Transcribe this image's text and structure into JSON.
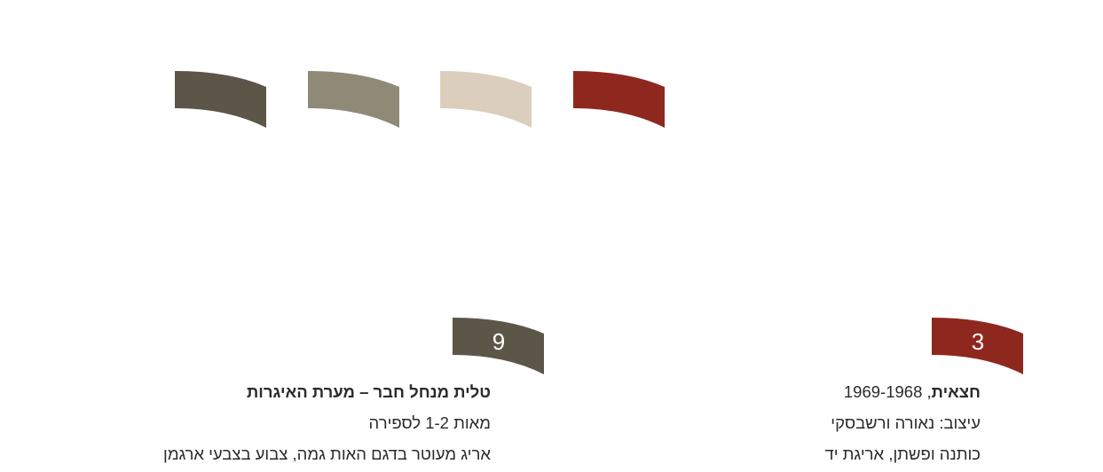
{
  "swatches": [
    {
      "name": "dark-gray",
      "color": "#5c5649"
    },
    {
      "name": "olive-gray",
      "color": "#8e8a76"
    },
    {
      "name": "beige",
      "color": "#dccebd"
    },
    {
      "name": "red",
      "color": "#8e281f"
    }
  ],
  "items": [
    {
      "number": "9",
      "color": "#5c5649",
      "title": "טלית מנחל חבר – מערת האיגרות",
      "date": "מאות 1-2 לספירה",
      "description": "אריג מעוטר בדגם האות גמה, צבוע בצבעי ארגמן"
    },
    {
      "number": "3",
      "color": "#8e281f",
      "title": "חצאית",
      "title_suffix": ", 1969-1968",
      "designer": "עיצוב: נאורה ורשבסקי",
      "materials": "כותנה ופשתן, אריגת יד"
    }
  ]
}
